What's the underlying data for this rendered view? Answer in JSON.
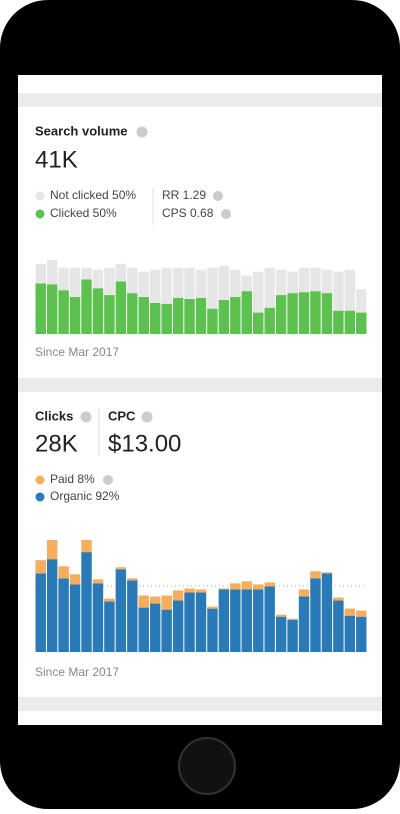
{
  "cards": [
    {
      "title": "Search volume",
      "metric": "41K",
      "stats": [
        "RR 1.29",
        "CPS 0.68"
      ],
      "footer": "Since Mar 2017",
      "chart": {
        "type": "bar",
        "stacked": true,
        "series": [
          {
            "name": "Clicked 50%",
            "color": "#5cc14f",
            "values": [
              52,
              51,
              45,
              38,
              56,
              47,
              40,
              54,
              42,
              38,
              32,
              31,
              37,
              36,
              37,
              26,
              35,
              38,
              44,
              22,
              27,
              40,
              42,
              43,
              44,
              42,
              24,
              24,
              22
            ]
          },
          {
            "name": "Not clicked 50%",
            "color": "#e6e6e6",
            "values": [
              20,
              25,
              23,
              30,
              12,
              19,
              28,
              18,
              26,
              26,
              34,
              37,
              31,
              32,
              29,
              42,
              35,
              28,
              16,
              42,
              41,
              26,
              22,
              25,
              24,
              24,
              40,
              42,
              24
            ]
          }
        ]
      }
    },
    {
      "title": "Clicks",
      "metric": "28K",
      "title2": "CPC",
      "metric2": "$13.00",
      "footer": "Since Mar 2017",
      "chart": {
        "type": "bar",
        "stacked": true,
        "series": [
          {
            "name": "Organic 92%",
            "color": "#2a7ab8",
            "values": [
              78,
              92,
              73,
              67,
              99,
              68,
              50,
              82,
              71,
              44,
              48,
              42,
              51,
              59,
              59,
              43,
              62,
              62,
              62,
              62,
              65,
              35,
              32,
              55,
              73,
              78,
              51,
              36,
              35
            ]
          },
          {
            "name": "Paid 8%",
            "color": "#f5ad5e",
            "values": [
              13,
              19,
              12,
              10,
              12,
              4,
              3,
              2,
              2,
              12,
              7,
              14,
              10,
              4,
              3,
              2,
              1,
              6,
              8,
              5,
              4,
              2,
              1,
              7,
              7,
              1,
              3,
              7,
              6
            ]
          }
        ]
      }
    }
  ]
}
